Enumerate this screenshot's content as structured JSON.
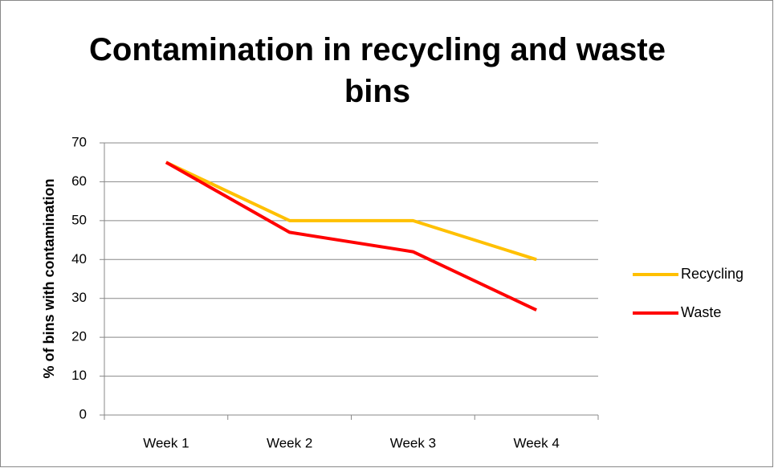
{
  "chart_data": {
    "type": "line",
    "title": "Contamination in recycling and waste bins",
    "y_label": "% of bins with contamination",
    "categories": [
      "Week 1",
      "Week 2",
      "Week 3",
      "Week 4"
    ],
    "series": [
      {
        "name": "Recycling",
        "color": "#ffc000",
        "values": [
          65,
          50,
          50,
          40
        ]
      },
      {
        "name": "Waste",
        "color": "#ff0000",
        "values": [
          65,
          47,
          42,
          27
        ]
      }
    ],
    "ylim": [
      0,
      70
    ],
    "yticks": [
      0,
      10,
      20,
      30,
      40,
      50,
      60,
      70
    ],
    "grid": true,
    "legend": "right"
  }
}
